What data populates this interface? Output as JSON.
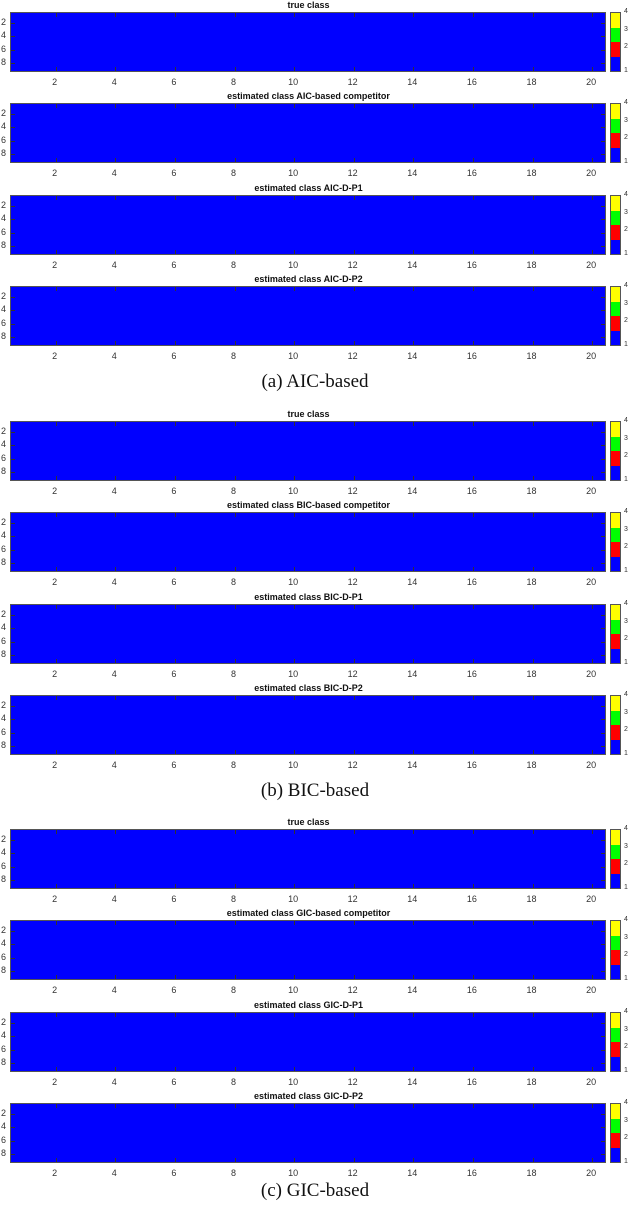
{
  "colors": {
    "class1": "#0000ff",
    "class2": "#ff0000",
    "class3": "#00ff00",
    "class4": "#ffff00"
  },
  "axes": {
    "xticks": [
      "2",
      "4",
      "6",
      "8",
      "10",
      "12",
      "14",
      "16",
      "18",
      "20"
    ],
    "yticks": [
      "2",
      "4",
      "6",
      "8"
    ],
    "colorbar_ticks": [
      "4",
      "3",
      "2",
      "1"
    ]
  },
  "sections": [
    {
      "caption": "(a)  AIC-based",
      "panels": [
        "true class",
        "estimated class AIC-based competitor",
        "estimated class AIC-D-P1",
        "estimated class AIC-D-P2"
      ]
    },
    {
      "caption": "(b)  BIC-based",
      "panels": [
        "true class",
        "estimated class BIC-based competitor",
        "estimated class BIC-D-P1",
        "estimated class BIC-D-P2"
      ]
    },
    {
      "caption": "(c)  GIC-based",
      "panels": [
        "true class",
        "estimated class GIC-based competitor",
        "estimated class GIC-D-P1",
        "estimated class GIC-D-P2"
      ]
    }
  ],
  "chart_data": {
    "type": "heatmap",
    "description": "12 class-assignment heatmaps (3 criteria x 4 panels), each 9 rows x 20 columns; all cells class 1 (blue)",
    "x_range": [
      0.5,
      20.5
    ],
    "y_range": [
      0.5,
      9.5
    ],
    "xticks": [
      2,
      4,
      6,
      8,
      10,
      12,
      14,
      16,
      18,
      20
    ],
    "yticks": [
      2,
      4,
      6,
      8
    ],
    "colorbar": {
      "range": [
        1,
        4
      ],
      "ticks": [
        1,
        2,
        3,
        4
      ],
      "colors": [
        "#0000ff",
        "#ff0000",
        "#00ff00",
        "#ffff00"
      ]
    },
    "panels": [
      {
        "section": "(a) AIC-based",
        "title": "true class",
        "value_all_cells": 1
      },
      {
        "section": "(a) AIC-based",
        "title": "estimated class AIC-based competitor",
        "value_all_cells": 1
      },
      {
        "section": "(a) AIC-based",
        "title": "estimated class AIC-D-P1",
        "value_all_cells": 1
      },
      {
        "section": "(a) AIC-based",
        "title": "estimated class AIC-D-P2",
        "value_all_cells": 1
      },
      {
        "section": "(b) BIC-based",
        "title": "true class",
        "value_all_cells": 1
      },
      {
        "section": "(b) BIC-based",
        "title": "estimated class BIC-based competitor",
        "value_all_cells": 1
      },
      {
        "section": "(b) BIC-based",
        "title": "estimated class BIC-D-P1",
        "value_all_cells": 1
      },
      {
        "section": "(b) BIC-based",
        "title": "estimated class BIC-D-P2",
        "value_all_cells": 1
      },
      {
        "section": "(c) GIC-based",
        "title": "true class",
        "value_all_cells": 1
      },
      {
        "section": "(c) GIC-based",
        "title": "estimated class GIC-based competitor",
        "value_all_cells": 1
      },
      {
        "section": "(c) GIC-based",
        "title": "estimated class GIC-D-P1",
        "value_all_cells": 1
      },
      {
        "section": "(c) GIC-based",
        "title": "estimated class GIC-D-P2",
        "value_all_cells": 1
      }
    ]
  }
}
